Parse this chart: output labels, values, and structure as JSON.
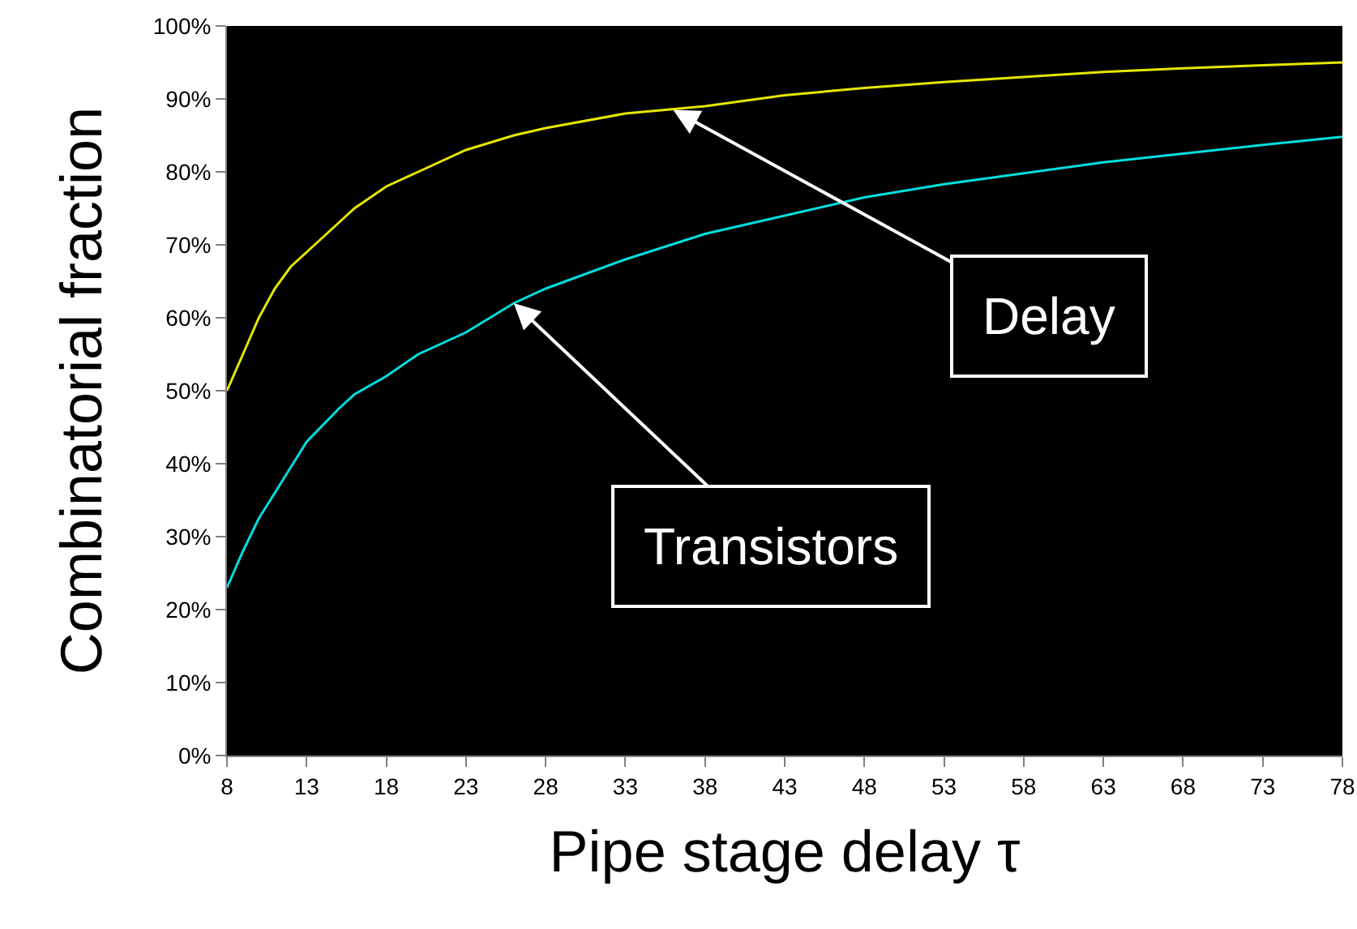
{
  "chart_data": {
    "type": "line",
    "xlabel": "Pipe stage delay τ",
    "ylabel": "Combinatorial fraction",
    "x": [
      8,
      9,
      10,
      11,
      12,
      13,
      15,
      16,
      18,
      20,
      23,
      26,
      28,
      33,
      38,
      43,
      48,
      53,
      58,
      63,
      68,
      73,
      78
    ],
    "series": [
      {
        "color": "#e6e600",
        "values": [
          50,
          55,
          60,
          64,
          67,
          69,
          73,
          75,
          78,
          80,
          83,
          85,
          86,
          88,
          89,
          90.5,
          91.5,
          92.3,
          93,
          93.7,
          94.2,
          94.6,
          95
        ]
      },
      {
        "color": "#00dede",
        "values": [
          23,
          28,
          32.5,
          36,
          39.5,
          43,
          47.5,
          49.5,
          52,
          55,
          58,
          62,
          64,
          68,
          71.5,
          74,
          76.5,
          78.3,
          79.8,
          81.3,
          82.5,
          83.7,
          84.8
        ]
      }
    ],
    "annotations": [
      {
        "text": "Delay",
        "x": 36,
        "y": 88.5
      },
      {
        "text": "Transistors",
        "x": 26,
        "y": 62
      }
    ],
    "xlim": [
      8,
      78
    ],
    "xticks": [
      8,
      13,
      18,
      23,
      28,
      33,
      38,
      43,
      48,
      53,
      58,
      63,
      68,
      73,
      78
    ],
    "ylim": [
      0,
      100
    ],
    "yticks": [
      {
        "value": 0,
        "label": "0%"
      },
      {
        "value": 10,
        "label": "10%"
      },
      {
        "value": 20,
        "label": "20%"
      },
      {
        "value": 30,
        "label": "30%"
      },
      {
        "value": 40,
        "label": "40%"
      },
      {
        "value": 50,
        "label": "50%"
      },
      {
        "value": 60,
        "label": "60%"
      },
      {
        "value": 70,
        "label": "70%"
      },
      {
        "value": 80,
        "label": "80%"
      },
      {
        "value": 90,
        "label": "90%"
      },
      {
        "value": 100,
        "label": "100%"
      }
    ],
    "grid": false,
    "legend": false,
    "marker": "none",
    "line_style": "solid"
  }
}
